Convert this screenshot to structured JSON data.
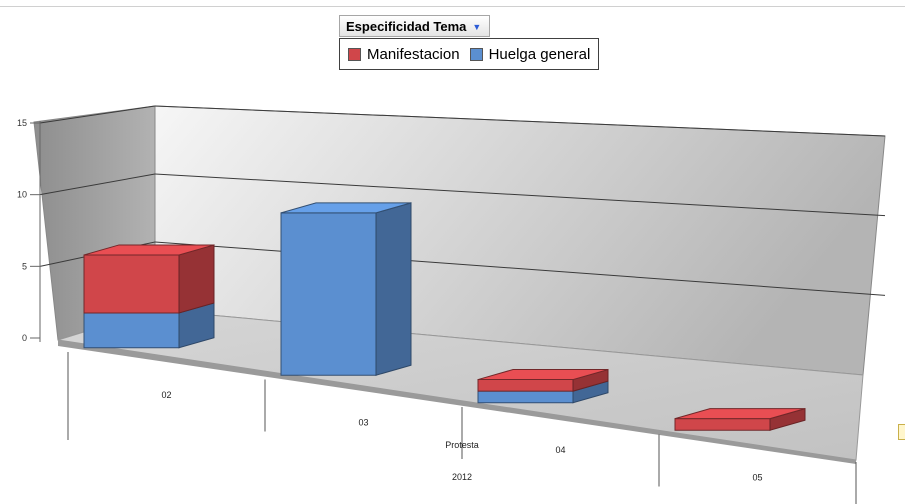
{
  "chart_data": {
    "type": "bar",
    "stacked": true,
    "three_d": true,
    "legend_title": "Especificidad Tema",
    "legend_position": "top",
    "categories": [
      "02",
      "03",
      "04",
      "05"
    ],
    "x_group_labels": [
      "Protesta",
      "2012"
    ],
    "series": [
      {
        "name": "Huelga general",
        "color": "#5b8fd0",
        "values": [
          3,
          14,
          1,
          0
        ]
      },
      {
        "name": "Manifestacion",
        "color": "#d0464a",
        "values": [
          5,
          0,
          1,
          1
        ]
      }
    ],
    "y_ticks": [
      "0",
      "5",
      "10",
      "15"
    ],
    "ylim": [
      0,
      15
    ],
    "grid": true
  }
}
